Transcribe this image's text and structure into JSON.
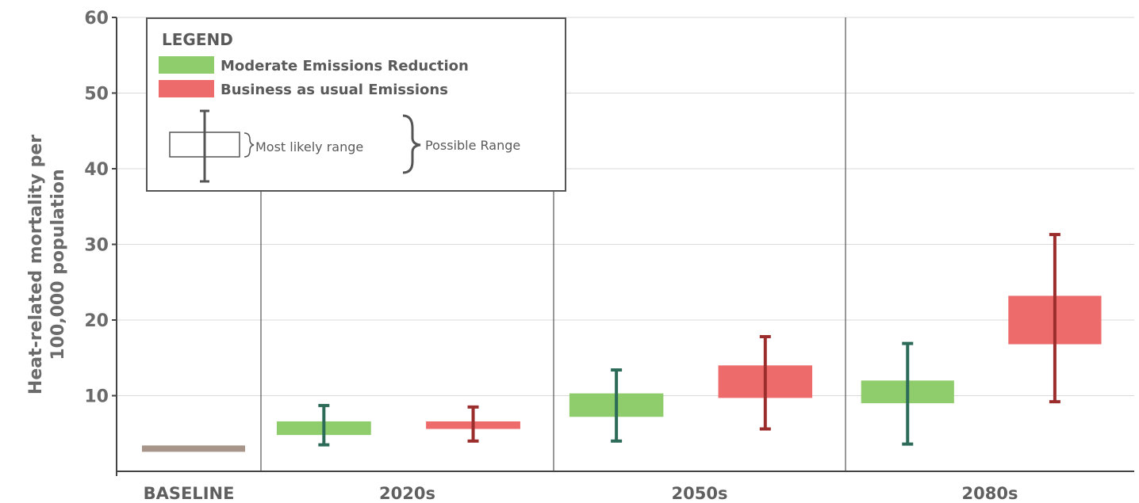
{
  "chart_data": {
    "type": "boxplot",
    "ylabel_lines": [
      "Heat-related mortality per",
      "100,000 population"
    ],
    "xlabel": "",
    "ylim": [
      0,
      60
    ],
    "yticks": [
      10,
      20,
      30,
      40,
      50,
      60
    ],
    "grid": true,
    "legend_position": "top-left",
    "legend": {
      "title": "LEGEND",
      "series_labels": [
        "Moderate Emissions Reduction",
        "Business as usual Emissions"
      ],
      "range_box_label": "Most likely range",
      "range_whisker_label": "Possible Range"
    },
    "categories": [
      "BASELINE",
      "2020s",
      "2050s",
      "2080s"
    ],
    "baseline": {
      "category": "BASELINE",
      "value": 3
    },
    "series": [
      {
        "name": "Moderate Emissions Reduction",
        "color": "#8fcc6b",
        "whisker_color": "#2d6b59",
        "points": [
          {
            "category": "2020s",
            "whisker_low": 3.5,
            "box_low": 4.8,
            "box_high": 6.6,
            "whisker_high": 8.7
          },
          {
            "category": "2050s",
            "whisker_low": 4.0,
            "box_low": 7.2,
            "box_high": 10.3,
            "whisker_high": 13.4
          },
          {
            "category": "2080s",
            "whisker_low": 3.6,
            "box_low": 9.0,
            "box_high": 12.0,
            "whisker_high": 16.9
          }
        ]
      },
      {
        "name": "Business as usual Emissions",
        "color": "#ee6b6b",
        "whisker_color": "#9b2d2d",
        "points": [
          {
            "category": "2020s",
            "whisker_low": 4.0,
            "box_low": 5.6,
            "box_high": 6.6,
            "whisker_high": 8.5
          },
          {
            "category": "2050s",
            "whisker_low": 5.6,
            "box_low": 9.7,
            "box_high": 14.0,
            "whisker_high": 17.8
          },
          {
            "category": "2080s",
            "whisker_low": 9.2,
            "box_low": 16.8,
            "box_high": 23.2,
            "whisker_high": 31.3
          }
        ]
      }
    ],
    "colors": {
      "baseline_bar": "#a8958a",
      "axis": "#444444",
      "grid": "#d9d9d9",
      "divider": "#555555"
    }
  }
}
